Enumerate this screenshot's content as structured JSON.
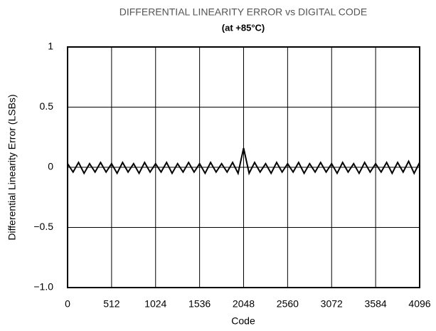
{
  "chart_data": {
    "type": "line",
    "title": "DIFFERENTIAL LINEARITY ERROR vs DIGITAL CODE",
    "subtitle": "(at +85°C)",
    "x_label": "Code",
    "y_label": "Differential Linearity Error (LSBs)",
    "xlim": [
      0,
      4096
    ],
    "xticks": [
      0,
      512,
      1024,
      1536,
      2048,
      2560,
      3072,
      3584,
      4096
    ],
    "ylim": [
      -1,
      1
    ],
    "yticks": [
      1,
      0.5,
      0,
      {
        "value": -0.5,
        "label": "−0.5"
      },
      {
        "value": -1,
        "label": "−1.0"
      }
    ],
    "grid": true,
    "series": [
      {
        "color": "#000000",
        "x": [
          0,
          64,
          128,
          192,
          256,
          320,
          384,
          448,
          512,
          576,
          640,
          704,
          768,
          832,
          896,
          960,
          1024,
          1088,
          1152,
          1216,
          1280,
          1344,
          1408,
          1472,
          1536,
          1600,
          1664,
          1728,
          1792,
          1856,
          1920,
          1984,
          2048,
          2112,
          2176,
          2240,
          2304,
          2368,
          2432,
          2496,
          2560,
          2624,
          2688,
          2752,
          2816,
          2880,
          2944,
          3008,
          3072,
          3136,
          3200,
          3264,
          3328,
          3392,
          3456,
          3520,
          3584,
          3648,
          3712,
          3776,
          3840,
          3904,
          3968,
          4032,
          4096
        ],
        "values": [
          0.03,
          -0.04,
          0.04,
          -0.05,
          0.03,
          -0.04,
          0.04,
          -0.04,
          0.03,
          -0.05,
          0.04,
          -0.04,
          0.03,
          -0.05,
          0.04,
          -0.04,
          0.03,
          -0.04,
          0.04,
          -0.05,
          0.03,
          -0.04,
          0.04,
          -0.04,
          0.03,
          -0.05,
          0.04,
          -0.04,
          0.03,
          -0.04,
          0.04,
          -0.05,
          0.16,
          -0.05,
          0.04,
          -0.04,
          0.03,
          -0.05,
          0.04,
          -0.04,
          0.03,
          -0.04,
          0.04,
          -0.05,
          0.03,
          -0.04,
          0.04,
          -0.04,
          0.03,
          -0.05,
          0.04,
          -0.04,
          0.03,
          -0.05,
          0.04,
          -0.04,
          0.03,
          -0.04,
          0.04,
          -0.05,
          0.04,
          -0.04,
          0.05,
          -0.05,
          0.04
        ]
      }
    ]
  }
}
